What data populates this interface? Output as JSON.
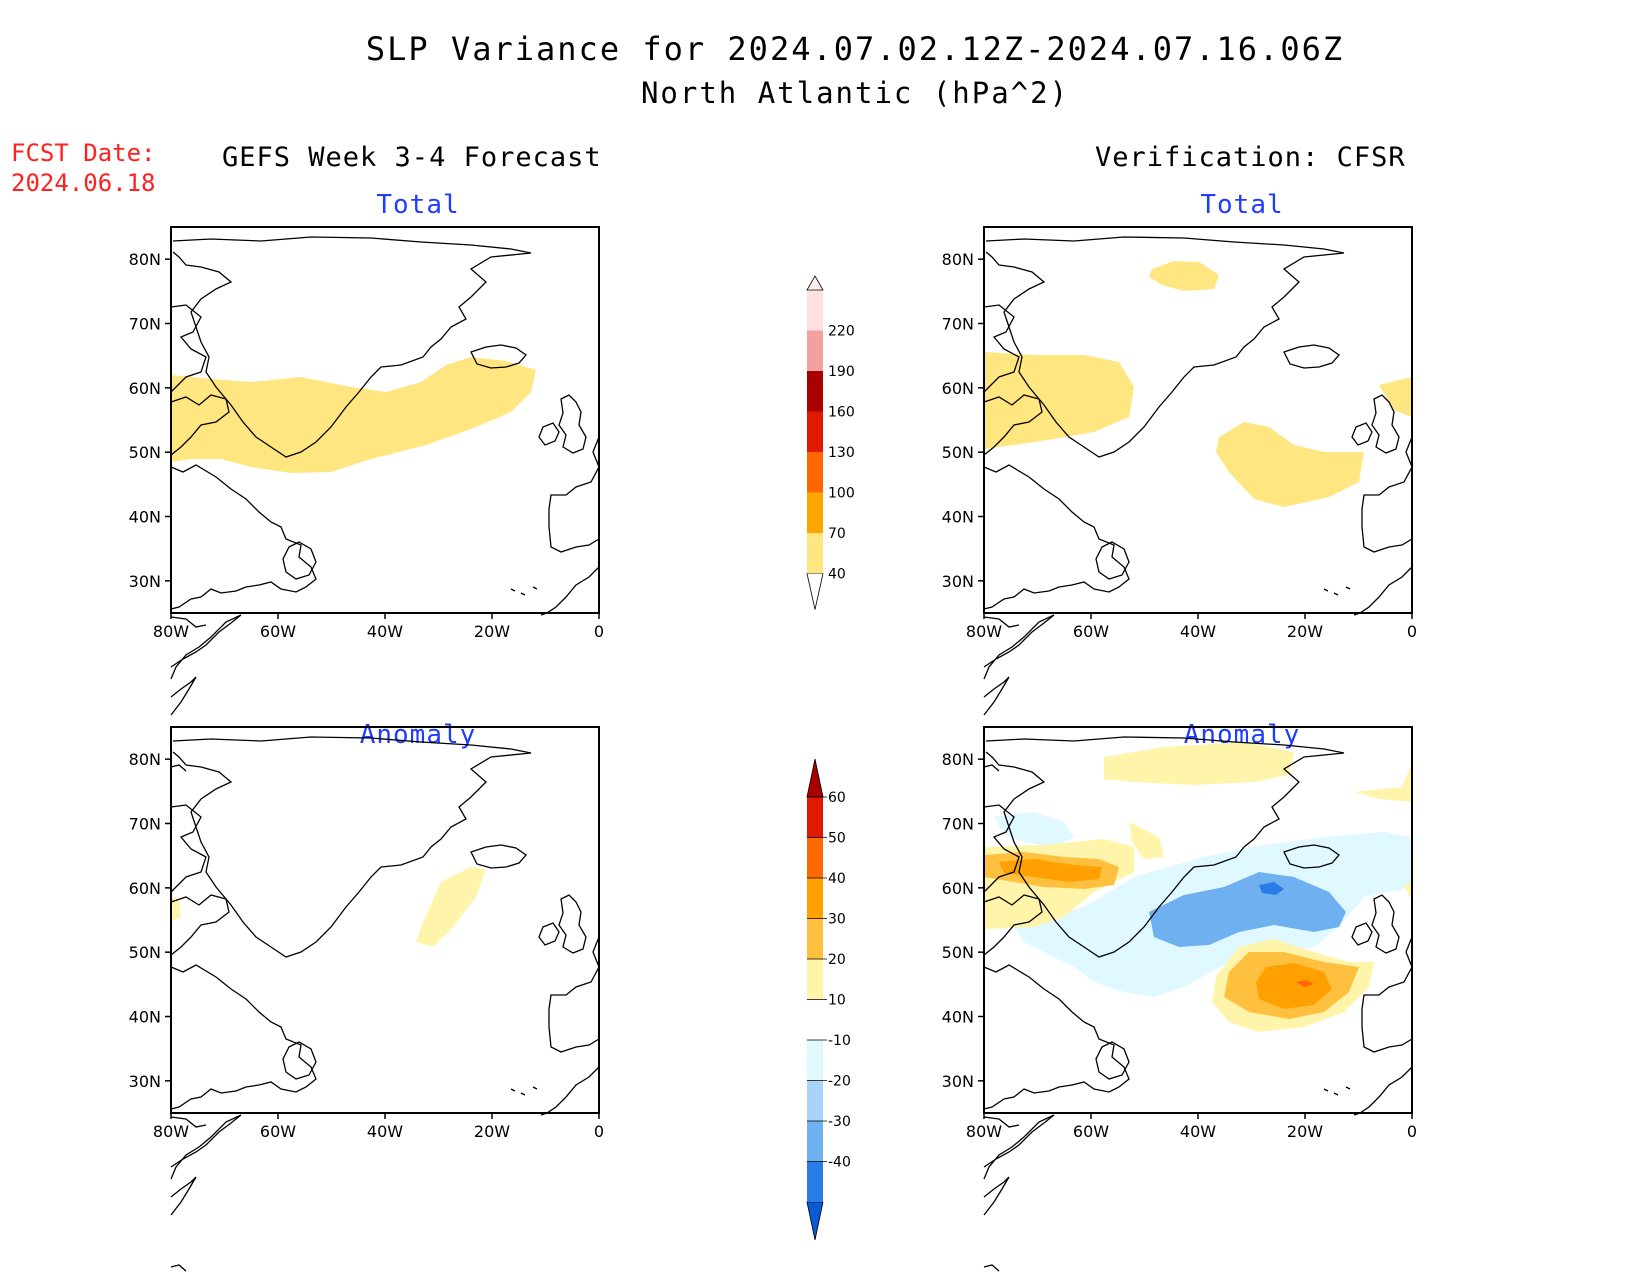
{
  "title": {
    "line1": "SLP Variance for 2024.07.02.12Z-2024.07.16.06Z",
    "line2": "North Atlantic (hPa^2)"
  },
  "fcst_date": {
    "label": "FCST Date:",
    "value": "2024.06.18"
  },
  "columns": {
    "left": "GEFS Week 3-4 Forecast",
    "right": "Verification: CFSR"
  },
  "panel_titles": {
    "total": "Total",
    "anomaly": "Anomaly"
  },
  "axes": {
    "lon_ticks": [
      "80W",
      "60W",
      "40W",
      "20W",
      "0"
    ],
    "lat_ticks": [
      "80N",
      "70N",
      "60N",
      "50N",
      "40N",
      "30N"
    ],
    "lon_range": [
      -80,
      0
    ],
    "lat_range": [
      25,
      85
    ]
  },
  "colorbars": {
    "total": {
      "levels": [
        "40",
        "70",
        "100",
        "130",
        "160",
        "190",
        "220"
      ],
      "colors": [
        "#ffe680",
        "#ffa500",
        "#ff6600",
        "#e01a00",
        "#a80000",
        "#f2a0a0",
        "#ffe0e0"
      ]
    },
    "anomaly": {
      "levels": [
        "-40",
        "-30",
        "-20",
        "-10",
        "10",
        "20",
        "30",
        "40",
        "50",
        "60"
      ],
      "colors": [
        "#0a5ad6",
        "#2a7ce8",
        "#6fb0f0",
        "#a8d4f8",
        "#e0f8ff",
        "#ffffff",
        "#fff5aa",
        "#ffc040",
        "#ffa000",
        "#ff6a00",
        "#e01a00",
        "#a80000"
      ]
    }
  },
  "icons": {
    "coastline": "coastline-outline"
  }
}
